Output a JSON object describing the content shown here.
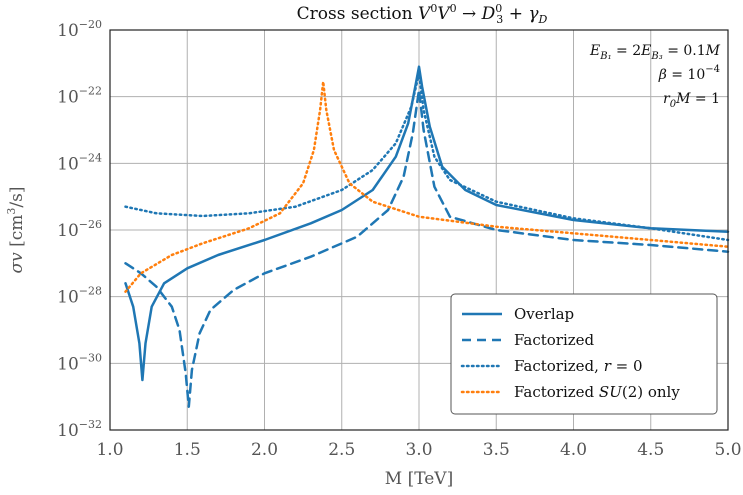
{
  "chart_data": {
    "type": "line",
    "title": "Cross section V⁰V⁰ → D₃⁰ + γ_D",
    "xlabel": "M [TeV]",
    "ylabel": "σv [cm³/s]",
    "xlim": [
      1.0,
      5.0
    ],
    "ylim_log10": [
      -32,
      -20
    ],
    "yscale": "log",
    "grid": true,
    "x_ticks": [
      "1.0",
      "1.5",
      "2.0",
      "2.5",
      "3.0",
      "3.5",
      "4.0",
      "4.5",
      "5.0"
    ],
    "y_ticks": [
      {
        "base": "10",
        "exp": "−20"
      },
      {
        "base": "10",
        "exp": "−22"
      },
      {
        "base": "10",
        "exp": "−24"
      },
      {
        "base": "10",
        "exp": "−26"
      },
      {
        "base": "10",
        "exp": "−28"
      },
      {
        "base": "10",
        "exp": "−30"
      },
      {
        "base": "10",
        "exp": "−32"
      }
    ],
    "annotations": [
      "E_B₁ = 2E_B₃ = 0.1M",
      "β = 10⁻⁴",
      "r₀M = 1"
    ],
    "legend_position": "lower right",
    "series": [
      {
        "name": "Overlap",
        "style": "solid",
        "color": "#1f77b4",
        "points": [
          [
            1.1,
            -27.6
          ],
          [
            1.15,
            -28.3
          ],
          [
            1.19,
            -29.4
          ],
          [
            1.21,
            -30.5
          ],
          [
            1.23,
            -29.4
          ],
          [
            1.27,
            -28.3
          ],
          [
            1.35,
            -27.6
          ],
          [
            1.5,
            -27.15
          ],
          [
            1.7,
            -26.75
          ],
          [
            2.0,
            -26.3
          ],
          [
            2.3,
            -25.8
          ],
          [
            2.5,
            -25.4
          ],
          [
            2.7,
            -24.8
          ],
          [
            2.85,
            -23.8
          ],
          [
            2.93,
            -22.8
          ],
          [
            2.98,
            -21.6
          ],
          [
            3.0,
            -21.1
          ],
          [
            3.02,
            -21.7
          ],
          [
            3.07,
            -22.9
          ],
          [
            3.15,
            -24.1
          ],
          [
            3.3,
            -24.8
          ],
          [
            3.5,
            -25.25
          ],
          [
            4.0,
            -25.7
          ],
          [
            4.5,
            -25.95
          ],
          [
            5.0,
            -26.05
          ]
        ]
      },
      {
        "name": "Factorized",
        "style": "dashed",
        "color": "#1f77b4",
        "points": [
          [
            1.1,
            -27.0
          ],
          [
            1.2,
            -27.3
          ],
          [
            1.3,
            -27.7
          ],
          [
            1.4,
            -28.3
          ],
          [
            1.45,
            -29.0
          ],
          [
            1.49,
            -30.3
          ],
          [
            1.51,
            -31.3
          ],
          [
            1.53,
            -30.2
          ],
          [
            1.58,
            -29.1
          ],
          [
            1.65,
            -28.4
          ],
          [
            1.8,
            -27.8
          ],
          [
            2.0,
            -27.3
          ],
          [
            2.3,
            -26.8
          ],
          [
            2.6,
            -26.2
          ],
          [
            2.8,
            -25.4
          ],
          [
            2.9,
            -24.4
          ],
          [
            2.96,
            -23.1
          ],
          [
            3.0,
            -21.8
          ],
          [
            3.03,
            -23.0
          ],
          [
            3.1,
            -24.7
          ],
          [
            3.2,
            -25.6
          ],
          [
            3.5,
            -26.0
          ],
          [
            4.0,
            -26.3
          ],
          [
            4.5,
            -26.45
          ],
          [
            5.0,
            -26.65
          ]
        ]
      },
      {
        "name": "Factorized, r = 0",
        "style": "dotted",
        "color": "#1f77b4",
        "points": [
          [
            1.1,
            -25.3
          ],
          [
            1.3,
            -25.5
          ],
          [
            1.6,
            -25.58
          ],
          [
            1.9,
            -25.5
          ],
          [
            2.2,
            -25.3
          ],
          [
            2.5,
            -24.8
          ],
          [
            2.7,
            -24.2
          ],
          [
            2.85,
            -23.4
          ],
          [
            2.95,
            -22.3
          ],
          [
            3.0,
            -21.3
          ],
          [
            3.03,
            -22.4
          ],
          [
            3.1,
            -23.8
          ],
          [
            3.2,
            -24.5
          ],
          [
            3.5,
            -25.15
          ],
          [
            4.0,
            -25.65
          ],
          [
            4.5,
            -25.95
          ],
          [
            5.0,
            -26.3
          ]
        ]
      },
      {
        "name": "Factorized SU(2) only",
        "style": "dotted",
        "color": "#ff7f0e",
        "points": [
          [
            1.1,
            -27.85
          ],
          [
            1.2,
            -27.3
          ],
          [
            1.4,
            -26.75
          ],
          [
            1.6,
            -26.4
          ],
          [
            1.9,
            -25.95
          ],
          [
            2.1,
            -25.5
          ],
          [
            2.25,
            -24.6
          ],
          [
            2.32,
            -23.6
          ],
          [
            2.36,
            -22.4
          ],
          [
            2.38,
            -21.55
          ],
          [
            2.4,
            -22.4
          ],
          [
            2.45,
            -23.6
          ],
          [
            2.55,
            -24.6
          ],
          [
            2.7,
            -25.15
          ],
          [
            3.0,
            -25.6
          ],
          [
            3.5,
            -25.9
          ],
          [
            4.0,
            -26.1
          ],
          [
            4.5,
            -26.3
          ],
          [
            5.0,
            -26.5
          ]
        ]
      }
    ]
  }
}
